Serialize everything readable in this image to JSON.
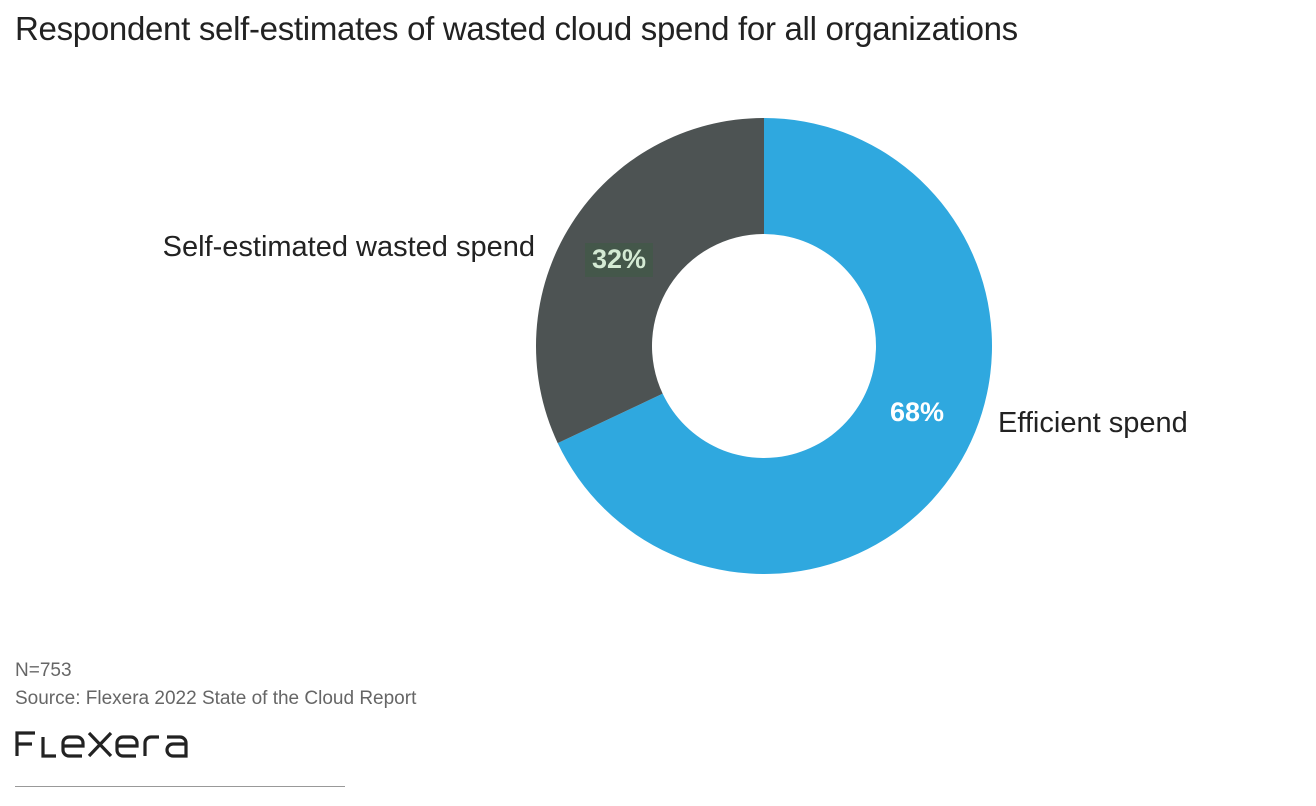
{
  "chart_data": {
    "type": "pie",
    "variant": "donut",
    "title": "Respondent self-estimates of wasted cloud spend for all organizations",
    "slices": [
      {
        "label": "Efficient spend",
        "value": 68,
        "display": "68%",
        "color": "#2fa8df",
        "label_color": "#ffffff"
      },
      {
        "label": "Self-estimated wasted spend",
        "value": 32,
        "display": "32%",
        "color": "#4d5353",
        "label_color": "#d4ead4"
      }
    ],
    "start_angle": "top",
    "direction": "clockwise"
  },
  "footer": {
    "n": "N=753",
    "source": "Source: Flexera 2022 State of the Cloud Report",
    "logo": "FLEXERA"
  }
}
